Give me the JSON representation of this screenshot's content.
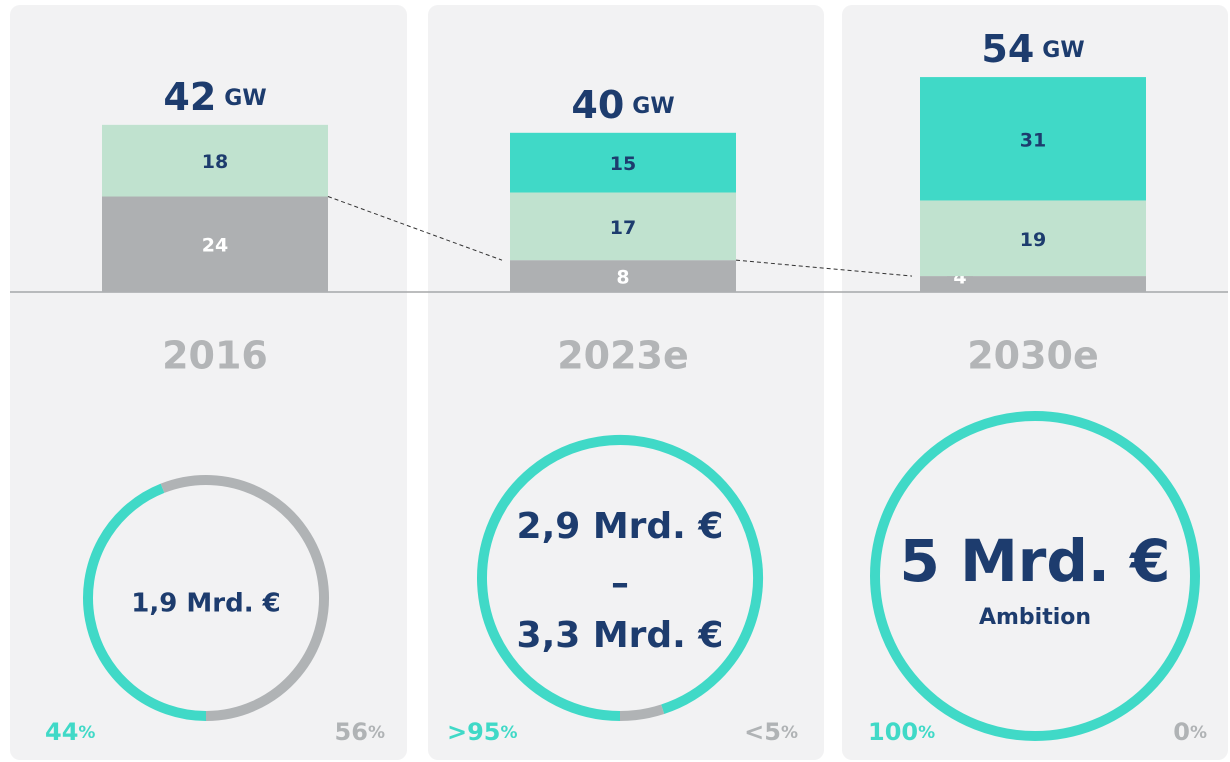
{
  "chart_data": [
    {
      "type": "bar",
      "stacked": true,
      "categories": [
        "2016",
        "2023e",
        "2030e"
      ],
      "unit": "GW",
      "totals": [
        42,
        40,
        54
      ],
      "series": [
        {
          "color": "#aeb0b2",
          "values": [
            24,
            8,
            4
          ]
        },
        {
          "color": "#c0e2cf",
          "values": [
            18,
            17,
            19
          ]
        },
        {
          "color": "#40d9c7",
          "values": [
            null,
            15,
            31
          ]
        }
      ]
    },
    {
      "type": "pie",
      "values": [
        44,
        56
      ],
      "value_labels": [
        "44%",
        "56%"
      ],
      "colors": [
        "#40d9c7",
        "#b0b3b5"
      ],
      "center": [
        "1,9 Mrd. €"
      ]
    },
    {
      "type": "pie",
      "values": [
        95,
        5
      ],
      "value_labels": [
        ">95%",
        "<5%"
      ],
      "colors": [
        "#40d9c7",
        "#b0b3b5"
      ],
      "center": [
        "2,9 Mrd. €",
        "–",
        "3,3 Mrd. €"
      ]
    },
    {
      "type": "pie",
      "values": [
        100,
        0
      ],
      "value_labels": [
        "100%",
        "0%"
      ],
      "colors": [
        "#40d9c7",
        "#b0b3b5"
      ],
      "center": [
        "5 Mrd. €",
        "Ambition"
      ]
    }
  ]
}
